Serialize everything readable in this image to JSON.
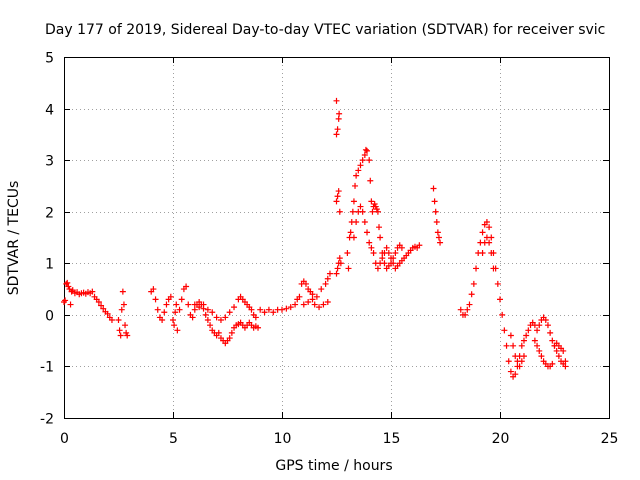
{
  "chart_data": {
    "type": "scatter",
    "title": "Day 177 of 2019, Sidereal Day-to-day VTEC variation (SDTVAR) for receiver svic",
    "xlabel": "GPS time / hours",
    "ylabel": "SDTVAR / TECUs",
    "xlim": [
      0,
      25
    ],
    "ylim": [
      -2,
      5
    ],
    "xticks": [
      "0",
      "5",
      "10",
      "15",
      "20",
      "25"
    ],
    "yticks": [
      "-2",
      "-1",
      "0",
      "1",
      "2",
      "3",
      "4",
      "5"
    ],
    "grid": true,
    "marker": "+",
    "series_color": "#ff0000",
    "series": [
      {
        "name": "SDTVAR",
        "points": [
          [
            0.0,
            0.25
          ],
          [
            0.05,
            0.28
          ],
          [
            0.1,
            0.6
          ],
          [
            0.15,
            0.62
          ],
          [
            0.2,
            0.55
          ],
          [
            0.25,
            0.5
          ],
          [
            0.3,
            0.2
          ],
          [
            0.35,
            0.45
          ],
          [
            0.4,
            0.48
          ],
          [
            0.5,
            0.42
          ],
          [
            0.6,
            0.44
          ],
          [
            0.7,
            0.4
          ],
          [
            0.8,
            0.42
          ],
          [
            0.9,
            0.43
          ],
          [
            1.0,
            0.41
          ],
          [
            1.1,
            0.44
          ],
          [
            1.2,
            0.42
          ],
          [
            1.3,
            0.45
          ],
          [
            1.4,
            0.35
          ],
          [
            1.5,
            0.3
          ],
          [
            1.6,
            0.25
          ],
          [
            1.7,
            0.18
          ],
          [
            1.8,
            0.12
          ],
          [
            1.9,
            0.06
          ],
          [
            2.0,
            0.02
          ],
          [
            2.1,
            -0.05
          ],
          [
            2.2,
            -0.1
          ],
          [
            2.5,
            -0.1
          ],
          [
            2.55,
            -0.3
          ],
          [
            2.6,
            -0.4
          ],
          [
            2.65,
            0.1
          ],
          [
            2.7,
            0.45
          ],
          [
            2.75,
            0.2
          ],
          [
            2.8,
            -0.2
          ],
          [
            2.85,
            -0.35
          ],
          [
            2.9,
            -0.4
          ],
          [
            4.0,
            0.45
          ],
          [
            4.1,
            0.5
          ],
          [
            4.2,
            0.3
          ],
          [
            4.3,
            0.1
          ],
          [
            4.4,
            -0.05
          ],
          [
            4.5,
            -0.1
          ],
          [
            4.6,
            0.05
          ],
          [
            4.7,
            0.2
          ],
          [
            4.8,
            0.3
          ],
          [
            4.9,
            0.35
          ],
          [
            5.0,
            -0.1
          ],
          [
            5.05,
            -0.2
          ],
          [
            5.1,
            0.05
          ],
          [
            5.15,
            0.2
          ],
          [
            5.2,
            -0.3
          ],
          [
            5.3,
            0.1
          ],
          [
            5.4,
            0.3
          ],
          [
            5.5,
            0.5
          ],
          [
            5.6,
            0.55
          ],
          [
            5.7,
            0.2
          ],
          [
            5.8,
            0.0
          ],
          [
            5.9,
            -0.05
          ],
          [
            6.0,
            0.1
          ],
          [
            6.1,
            0.2
          ],
          [
            6.2,
            0.15
          ],
          [
            6.3,
            0.2
          ],
          [
            6.4,
            0.12
          ],
          [
            6.5,
            0.0
          ],
          [
            6.6,
            -0.1
          ],
          [
            6.7,
            -0.2
          ],
          [
            6.8,
            -0.3
          ],
          [
            6.9,
            -0.35
          ],
          [
            7.0,
            -0.4
          ],
          [
            7.1,
            -0.35
          ],
          [
            7.2,
            -0.45
          ],
          [
            7.3,
            -0.5
          ],
          [
            7.4,
            -0.55
          ],
          [
            7.5,
            -0.5
          ],
          [
            7.6,
            -0.45
          ],
          [
            7.7,
            -0.35
          ],
          [
            7.8,
            -0.25
          ],
          [
            7.9,
            -0.2
          ],
          [
            8.0,
            -0.18
          ],
          [
            8.1,
            -0.15
          ],
          [
            8.2,
            -0.2
          ],
          [
            8.3,
            -0.25
          ],
          [
            8.4,
            -0.2
          ],
          [
            8.5,
            -0.15
          ],
          [
            8.6,
            -0.2
          ],
          [
            8.7,
            -0.25
          ],
          [
            8.8,
            -0.22
          ],
          [
            8.9,
            -0.25
          ],
          [
            6.0,
            0.2
          ],
          [
            6.2,
            0.25
          ],
          [
            6.4,
            0.2
          ],
          [
            6.6,
            0.1
          ],
          [
            6.8,
            0.05
          ],
          [
            7.0,
            -0.05
          ],
          [
            7.2,
            -0.1
          ],
          [
            7.4,
            -0.05
          ],
          [
            7.6,
            0.05
          ],
          [
            7.8,
            0.15
          ],
          [
            8.0,
            0.3
          ],
          [
            8.1,
            0.35
          ],
          [
            8.2,
            0.3
          ],
          [
            8.3,
            0.25
          ],
          [
            8.4,
            0.2
          ],
          [
            8.5,
            0.15
          ],
          [
            8.6,
            0.1
          ],
          [
            8.7,
            0.0
          ],
          [
            8.8,
            -0.05
          ],
          [
            9.0,
            0.1
          ],
          [
            9.2,
            0.05
          ],
          [
            9.4,
            0.1
          ],
          [
            9.6,
            0.05
          ],
          [
            9.8,
            0.1
          ],
          [
            10.0,
            0.1
          ],
          [
            10.2,
            0.12
          ],
          [
            10.4,
            0.15
          ],
          [
            10.6,
            0.2
          ],
          [
            10.7,
            0.3
          ],
          [
            10.8,
            0.35
          ],
          [
            10.9,
            0.6
          ],
          [
            11.0,
            0.65
          ],
          [
            11.1,
            0.6
          ],
          [
            11.2,
            0.5
          ],
          [
            11.3,
            0.45
          ],
          [
            11.4,
            0.4
          ],
          [
            11.0,
            0.2
          ],
          [
            11.2,
            0.25
          ],
          [
            11.4,
            0.3
          ],
          [
            11.6,
            0.35
          ],
          [
            11.8,
            0.5
          ],
          [
            12.0,
            0.6
          ],
          [
            12.1,
            0.7
          ],
          [
            12.2,
            0.8
          ],
          [
            11.5,
            0.2
          ],
          [
            11.7,
            0.15
          ],
          [
            11.9,
            0.2
          ],
          [
            12.1,
            0.25
          ],
          [
            12.5,
            0.8
          ],
          [
            12.55,
            0.9
          ],
          [
            12.6,
            1.0
          ],
          [
            12.65,
            1.1
          ],
          [
            12.7,
            1.0
          ],
          [
            12.5,
            3.5
          ],
          [
            12.55,
            3.6
          ],
          [
            12.6,
            3.8
          ],
          [
            12.62,
            3.9
          ],
          [
            12.5,
            4.15
          ],
          [
            12.5,
            2.2
          ],
          [
            12.55,
            2.3
          ],
          [
            12.6,
            2.4
          ],
          [
            12.65,
            2.0
          ],
          [
            13.0,
            1.2
          ],
          [
            13.05,
            0.9
          ],
          [
            13.1,
            1.5
          ],
          [
            13.15,
            1.6
          ],
          [
            13.2,
            1.8
          ],
          [
            13.25,
            2.0
          ],
          [
            13.3,
            2.2
          ],
          [
            13.35,
            2.5
          ],
          [
            13.4,
            2.7
          ],
          [
            13.5,
            2.8
          ],
          [
            13.6,
            2.9
          ],
          [
            13.7,
            3.0
          ],
          [
            13.8,
            3.1
          ],
          [
            13.85,
            3.2
          ],
          [
            13.9,
            3.18
          ],
          [
            14.0,
            3.0
          ],
          [
            14.05,
            2.6
          ],
          [
            14.1,
            2.2
          ],
          [
            14.15,
            2.0
          ],
          [
            14.2,
            2.1
          ],
          [
            14.25,
            2.15
          ],
          [
            14.3,
            2.1
          ],
          [
            14.35,
            2.05
          ],
          [
            14.4,
            2.0
          ],
          [
            14.45,
            1.7
          ],
          [
            14.5,
            1.5
          ],
          [
            14.6,
            1.2
          ],
          [
            14.7,
            1.0
          ],
          [
            14.8,
            0.9
          ],
          [
            14.9,
            0.95
          ],
          [
            15.0,
            1.0
          ],
          [
            15.1,
            1.1
          ],
          [
            15.2,
            1.2
          ],
          [
            15.3,
            1.3
          ],
          [
            15.4,
            1.35
          ],
          [
            15.5,
            1.3
          ],
          [
            13.3,
            1.5
          ],
          [
            13.4,
            1.8
          ],
          [
            13.5,
            2.0
          ],
          [
            13.6,
            2.1
          ],
          [
            13.7,
            2.0
          ],
          [
            13.8,
            1.8
          ],
          [
            13.9,
            1.6
          ],
          [
            14.0,
            1.4
          ],
          [
            14.1,
            1.3
          ],
          [
            14.2,
            1.2
          ],
          [
            14.3,
            1.0
          ],
          [
            14.4,
            0.9
          ],
          [
            14.5,
            1.0
          ],
          [
            14.6,
            1.1
          ],
          [
            14.7,
            1.2
          ],
          [
            14.8,
            1.3
          ],
          [
            14.9,
            1.2
          ],
          [
            15.0,
            1.1
          ],
          [
            15.1,
            1.0
          ],
          [
            15.2,
            0.9
          ],
          [
            15.3,
            0.95
          ],
          [
            15.4,
            1.0
          ],
          [
            15.5,
            1.05
          ],
          [
            15.6,
            1.1
          ],
          [
            15.7,
            1.15
          ],
          [
            15.8,
            1.2
          ],
          [
            15.9,
            1.25
          ],
          [
            16.0,
            1.3
          ],
          [
            16.1,
            1.32
          ],
          [
            16.2,
            1.3
          ],
          [
            16.3,
            1.35
          ],
          [
            16.95,
            2.45
          ],
          [
            17.0,
            2.2
          ],
          [
            17.05,
            2.0
          ],
          [
            17.1,
            1.8
          ],
          [
            17.15,
            1.6
          ],
          [
            17.2,
            1.5
          ],
          [
            17.25,
            1.4
          ],
          [
            18.2,
            0.1
          ],
          [
            18.3,
            0.0
          ],
          [
            18.4,
            0.0
          ],
          [
            18.5,
            0.1
          ],
          [
            18.6,
            0.2
          ],
          [
            18.7,
            0.4
          ],
          [
            18.8,
            0.6
          ],
          [
            18.9,
            0.9
          ],
          [
            19.0,
            1.2
          ],
          [
            19.1,
            1.4
          ],
          [
            19.2,
            1.6
          ],
          [
            19.3,
            1.75
          ],
          [
            19.4,
            1.8
          ],
          [
            19.5,
            1.7
          ],
          [
            19.6,
            1.5
          ],
          [
            19.7,
            1.2
          ],
          [
            19.8,
            0.9
          ],
          [
            19.9,
            0.6
          ],
          [
            20.0,
            0.3
          ],
          [
            20.1,
            0.0
          ],
          [
            20.2,
            -0.3
          ],
          [
            20.3,
            -0.6
          ],
          [
            20.4,
            -0.9
          ],
          [
            20.5,
            -1.1
          ],
          [
            20.6,
            -1.2
          ],
          [
            20.7,
            -1.15
          ],
          [
            20.8,
            -1.0
          ],
          [
            20.9,
            -0.8
          ],
          [
            21.0,
            -0.6
          ],
          [
            21.1,
            -0.5
          ],
          [
            21.2,
            -0.4
          ],
          [
            21.3,
            -0.3
          ],
          [
            21.4,
            -0.2
          ],
          [
            21.5,
            -0.15
          ],
          [
            21.6,
            -0.2
          ],
          [
            21.7,
            -0.3
          ],
          [
            21.8,
            -0.2
          ],
          [
            21.9,
            -0.1
          ],
          [
            22.0,
            -0.05
          ],
          [
            22.1,
            -0.1
          ],
          [
            22.2,
            -0.2
          ],
          [
            22.3,
            -0.35
          ],
          [
            22.4,
            -0.5
          ],
          [
            22.5,
            -0.6
          ],
          [
            22.6,
            -0.7
          ],
          [
            22.7,
            -0.8
          ],
          [
            22.8,
            -0.9
          ],
          [
            22.9,
            -0.95
          ],
          [
            23.0,
            -1.0
          ],
          [
            19.2,
            1.2
          ],
          [
            19.3,
            1.4
          ],
          [
            19.4,
            1.5
          ],
          [
            19.5,
            1.4
          ],
          [
            19.6,
            1.2
          ],
          [
            19.7,
            0.9
          ],
          [
            20.5,
            -0.4
          ],
          [
            20.6,
            -0.6
          ],
          [
            20.7,
            -0.8
          ],
          [
            20.8,
            -0.9
          ],
          [
            20.9,
            -1.0
          ],
          [
            21.0,
            -0.9
          ],
          [
            21.1,
            -0.8
          ],
          [
            21.6,
            -0.5
          ],
          [
            21.7,
            -0.6
          ],
          [
            21.8,
            -0.7
          ],
          [
            21.9,
            -0.8
          ],
          [
            22.0,
            -0.9
          ],
          [
            22.1,
            -0.95
          ],
          [
            22.2,
            -1.0
          ],
          [
            22.3,
            -1.0
          ],
          [
            22.4,
            -0.95
          ],
          [
            22.5,
            -0.6
          ],
          [
            22.6,
            -0.55
          ],
          [
            22.7,
            -0.6
          ],
          [
            22.8,
            -0.65
          ],
          [
            22.9,
            -0.7
          ],
          [
            23.0,
            -0.9
          ]
        ]
      }
    ]
  }
}
